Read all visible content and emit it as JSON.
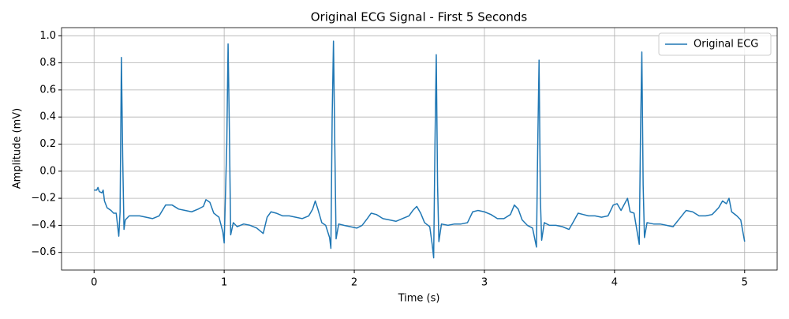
{
  "chart_data": {
    "type": "line",
    "title": "Original ECG Signal - First 5 Seconds",
    "xlabel": "Time (s)",
    "ylabel": "Amplitude (mV)",
    "x": [
      0.0,
      0.02,
      0.03,
      0.04,
      0.06,
      0.07,
      0.08,
      0.1,
      0.13,
      0.15,
      0.17,
      0.19,
      0.2,
      0.21,
      0.22,
      0.23,
      0.24,
      0.27,
      0.3,
      0.35,
      0.4,
      0.45,
      0.5,
      0.55,
      0.6,
      0.65,
      0.7,
      0.75,
      0.8,
      0.84,
      0.86,
      0.89,
      0.92,
      0.96,
      0.99,
      1.0,
      1.02,
      1.03,
      1.04,
      1.05,
      1.07,
      1.1,
      1.15,
      1.2,
      1.25,
      1.3,
      1.33,
      1.36,
      1.4,
      1.45,
      1.5,
      1.55,
      1.6,
      1.65,
      1.68,
      1.7,
      1.72,
      1.75,
      1.78,
      1.81,
      1.82,
      1.83,
      1.84,
      1.85,
      1.86,
      1.88,
      1.92,
      1.97,
      2.02,
      2.06,
      2.1,
      2.13,
      2.17,
      2.22,
      2.27,
      2.32,
      2.37,
      2.42,
      2.45,
      2.48,
      2.51,
      2.54,
      2.58,
      2.6,
      2.61,
      2.62,
      2.63,
      2.64,
      2.65,
      2.67,
      2.72,
      2.77,
      2.82,
      2.87,
      2.91,
      2.95,
      3.0,
      3.05,
      3.1,
      3.15,
      3.2,
      3.23,
      3.26,
      3.29,
      3.33,
      3.37,
      3.4,
      3.41,
      3.42,
      3.43,
      3.44,
      3.46,
      3.5,
      3.55,
      3.6,
      3.65,
      3.68,
      3.72,
      3.76,
      3.8,
      3.85,
      3.9,
      3.95,
      3.99,
      4.02,
      4.05,
      4.1,
      4.12,
      4.15,
      4.19,
      4.2,
      4.21,
      4.22,
      4.23,
      4.25,
      4.3,
      4.35,
      4.4,
      4.45,
      4.5,
      4.55,
      4.6,
      4.65,
      4.7,
      4.75,
      4.8,
      4.83,
      4.86,
      4.88,
      4.9,
      4.94,
      4.97,
      5.0
    ],
    "series": [
      {
        "name": "Original ECG",
        "color": "#1f77b4",
        "values": [
          -0.14,
          -0.14,
          -0.12,
          -0.15,
          -0.16,
          -0.14,
          -0.22,
          -0.27,
          -0.29,
          -0.31,
          -0.31,
          -0.48,
          -0.3,
          0.84,
          0.1,
          -0.43,
          -0.36,
          -0.33,
          -0.33,
          -0.33,
          -0.34,
          -0.35,
          -0.33,
          -0.25,
          -0.25,
          -0.28,
          -0.29,
          -0.3,
          -0.28,
          -0.26,
          -0.21,
          -0.23,
          -0.31,
          -0.34,
          -0.45,
          -0.53,
          0.2,
          0.94,
          0.3,
          -0.47,
          -0.38,
          -0.41,
          -0.39,
          -0.4,
          -0.42,
          -0.46,
          -0.34,
          -0.3,
          -0.31,
          -0.33,
          -0.33,
          -0.34,
          -0.35,
          -0.33,
          -0.28,
          -0.22,
          -0.28,
          -0.38,
          -0.4,
          -0.49,
          -0.57,
          0.4,
          0.96,
          0.2,
          -0.5,
          -0.39,
          -0.4,
          -0.41,
          -0.42,
          -0.4,
          -0.35,
          -0.31,
          -0.32,
          -0.35,
          -0.36,
          -0.37,
          -0.35,
          -0.33,
          -0.29,
          -0.26,
          -0.31,
          -0.38,
          -0.41,
          -0.55,
          -0.64,
          0.2,
          0.86,
          -0.1,
          -0.52,
          -0.39,
          -0.4,
          -0.39,
          -0.39,
          -0.38,
          -0.3,
          -0.29,
          -0.3,
          -0.32,
          -0.35,
          -0.35,
          -0.32,
          -0.25,
          -0.28,
          -0.36,
          -0.4,
          -0.42,
          -0.56,
          0.2,
          0.82,
          -0.2,
          -0.51,
          -0.38,
          -0.4,
          -0.4,
          -0.41,
          -0.43,
          -0.38,
          -0.31,
          -0.32,
          -0.33,
          -0.33,
          -0.34,
          -0.33,
          -0.25,
          -0.24,
          -0.29,
          -0.2,
          -0.3,
          -0.31,
          -0.54,
          0.3,
          0.88,
          -0.1,
          -0.49,
          -0.38,
          -0.39,
          -0.39,
          -0.4,
          -0.41,
          -0.35,
          -0.29,
          -0.3,
          -0.33,
          -0.33,
          -0.32,
          -0.27,
          -0.22,
          -0.24,
          -0.2,
          -0.3,
          -0.33,
          -0.36,
          -0.52
        ]
      }
    ],
    "xlim": [
      -0.25,
      5.25
    ],
    "ylim": [
      -0.73,
      1.06
    ],
    "xticks": [
      0,
      1,
      2,
      3,
      4,
      5
    ],
    "yticks": [
      {
        "value": -0.6,
        "label": "−0.6"
      },
      {
        "value": -0.4,
        "label": "−0.4"
      },
      {
        "value": -0.2,
        "label": "−0.2"
      },
      {
        "value": 0,
        "label": "0.0"
      },
      {
        "value": 0.2,
        "label": "0.2"
      },
      {
        "value": 0.4,
        "label": "0.4"
      },
      {
        "value": 0.6,
        "label": "0.6"
      },
      {
        "value": 0.8,
        "label": "0.8"
      },
      {
        "value": 1.0,
        "label": "1.0"
      }
    ],
    "grid": true,
    "legend": "upper right"
  }
}
